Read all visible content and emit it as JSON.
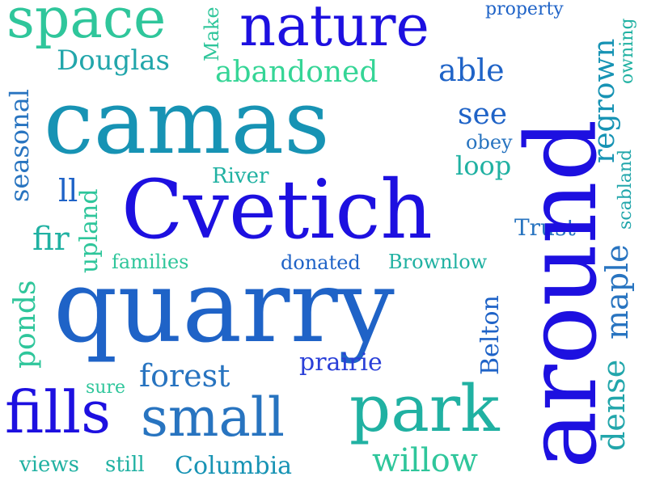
{
  "words": {
    "space": "space",
    "nature": "nature",
    "property": "property",
    "make": "Make",
    "douglas": "Douglas",
    "abandoned": "abandoned",
    "able": "able",
    "owning": "owning",
    "seasonal": "seasonal",
    "camas": "camas",
    "see": "see",
    "regrown": "regrown",
    "obey": "obey",
    "scabland": "scabland",
    "loop": "loop",
    "river": "River",
    "ll": "ll",
    "cvetich": "Cvetich",
    "around": "around",
    "upland": "upland",
    "fir": "fir",
    "trust": "Trust",
    "families": "families",
    "donated": "donated",
    "brownlow": "Brownlow",
    "ponds": "ponds",
    "quarry": "quarry",
    "maple": "maple",
    "belton": "Belton",
    "dense": "dense",
    "prairie": "prairie",
    "forest": "forest",
    "sure": "sure",
    "fills": "fills",
    "small": "small",
    "park": "park",
    "willow": "willow",
    "views": "views",
    "still": "still",
    "columbia": "Columbia"
  },
  "colors": {
    "blue": "#1d10e0",
    "royal": "#2a3fd8",
    "mid_blue": "#1f63c7",
    "steel": "#2874c0",
    "teal_blue": "#1793b4",
    "teal": "#20b1a2",
    "sea": "#2fc69b",
    "mint": "#35d596",
    "aqua": "#22a6ab"
  }
}
